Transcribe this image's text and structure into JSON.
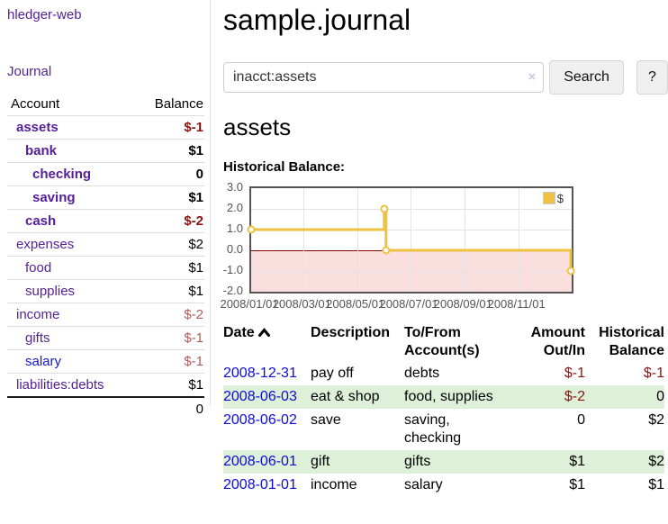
{
  "sidebar": {
    "app_title": "hledger-web",
    "nav": {
      "journal": "Journal"
    },
    "table": {
      "account_header": "Account",
      "balance_header": "Balance",
      "rows": [
        {
          "label": "assets",
          "balance": "$-1"
        },
        {
          "label": "bank",
          "balance": "$1"
        },
        {
          "label": "checking",
          "balance": "0"
        },
        {
          "label": "saving",
          "balance": "$1"
        },
        {
          "label": "cash",
          "balance": "$-2"
        },
        {
          "label": "expenses",
          "balance": "$2"
        },
        {
          "label": "food",
          "balance": "$1"
        },
        {
          "label": "supplies",
          "balance": "$1"
        },
        {
          "label": "income",
          "balance": "$-2"
        },
        {
          "label": "gifts",
          "balance": "$-1"
        },
        {
          "label": "salary",
          "balance": "$-1"
        },
        {
          "label": "liabilities:debts",
          "balance": "$1"
        }
      ],
      "total": "0"
    }
  },
  "main": {
    "title": "sample.journal",
    "search": {
      "value": "inacct:assets",
      "clear": "×",
      "search_button": "Search",
      "help_button": "?"
    },
    "account_heading": "assets",
    "chart_label": "Historical Balance:"
  },
  "chart_data": {
    "type": "line",
    "step": true,
    "title": "Historical Balance",
    "legend": {
      "label": "$",
      "position": "top-right"
    },
    "series_color": "#edc240",
    "negative_region_color": "#fbdede",
    "zero_line_color": "#8b0000",
    "ylim": [
      -2.0,
      3.0
    ],
    "y_ticks": [
      3.0,
      2.0,
      1.0,
      0.0,
      -1.0,
      -2.0
    ],
    "x_total_days": 366,
    "x_ticks": [
      {
        "label": "2008/01/01",
        "day": 0
      },
      {
        "label": "2008/03/01",
        "day": 60
      },
      {
        "label": "2008/05/01",
        "day": 121
      },
      {
        "label": "2008/07/01",
        "day": 182
      },
      {
        "label": "2008/09/01",
        "day": 244
      },
      {
        "label": "2008/11/01",
        "day": 305
      }
    ],
    "points": [
      {
        "date": "2008-01-01",
        "day": 0,
        "value": 1
      },
      {
        "date": "2008-06-01",
        "day": 152,
        "value": 2
      },
      {
        "date": "2008-06-03",
        "day": 154,
        "value": 0
      },
      {
        "date": "2008-12-31",
        "day": 365,
        "value": -1
      }
    ]
  },
  "register": {
    "headers": {
      "date": "Date",
      "description": "Description",
      "accounts": "To/From Account(s)",
      "amount": "Amount Out/In",
      "balance": "Historical Balance"
    },
    "rows": [
      {
        "date": "2008-12-31",
        "description": "pay off",
        "accounts": "debts",
        "amount": "$-1",
        "balance": "$-1"
      },
      {
        "date": "2008-06-03",
        "description": "eat & shop",
        "accounts": "food, supplies",
        "amount": "$-2",
        "balance": "0"
      },
      {
        "date": "2008-06-02",
        "description": "save",
        "accounts": "saving, checking",
        "amount": "0",
        "balance": "$2"
      },
      {
        "date": "2008-06-01",
        "description": "gift",
        "accounts": "gifts",
        "amount": "$1",
        "balance": "$2"
      },
      {
        "date": "2008-01-01",
        "description": "income",
        "accounts": "salary",
        "amount": "$1",
        "balance": "$1"
      }
    ]
  }
}
